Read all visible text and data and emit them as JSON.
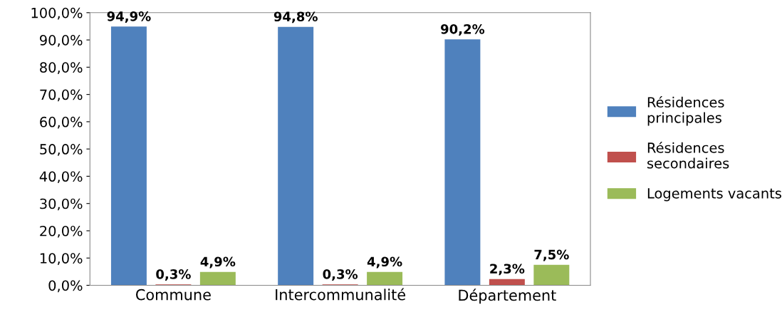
{
  "chart_data": {
    "type": "bar",
    "categories": [
      "Commune",
      "Intercommunalité",
      "Département"
    ],
    "series": [
      {
        "name": "Résidences principales",
        "color": "#4f81bd",
        "values": [
          94.9,
          94.8,
          90.2
        ],
        "value_labels": [
          "94,9%",
          "94,8%",
          "90,2%"
        ]
      },
      {
        "name": "Résidences secondaires",
        "color": "#c0504d",
        "values": [
          0.3,
          0.3,
          2.3
        ],
        "value_labels": [
          "0,3%",
          "0,3%",
          "2,3%"
        ]
      },
      {
        "name": "Logements vacants",
        "color": "#9bbb59",
        "values": [
          4.9,
          4.9,
          7.5
        ],
        "value_labels": [
          "4,9%",
          "4,9%",
          "7,5%"
        ]
      }
    ],
    "ylim": [
      0,
      100
    ],
    "yticks": [
      {
        "value": 0,
        "label": "0,0%"
      },
      {
        "value": 10,
        "label": "10,0%"
      },
      {
        "value": 20,
        "label": "20,0%"
      },
      {
        "value": 30,
        "label": "30,0%"
      },
      {
        "value": 40,
        "label": "40,0%"
      },
      {
        "value": 50,
        "label": "50,0%"
      },
      {
        "value": 60,
        "label": "60,0%"
      },
      {
        "value": 70,
        "label": "70,0%"
      },
      {
        "value": 80,
        "label": "80,0%"
      },
      {
        "value": 90,
        "label": "90,0%"
      },
      {
        "value": 100,
        "label": "100,0%"
      }
    ],
    "grid": false,
    "legend": "right"
  }
}
